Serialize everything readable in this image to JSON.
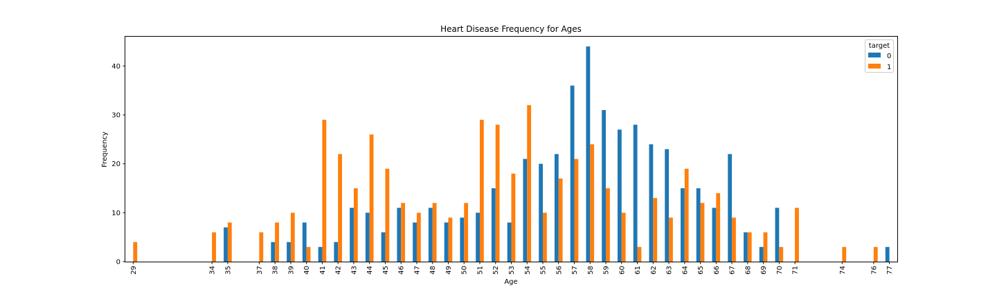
{
  "chart_data": {
    "type": "bar",
    "title": "Heart Disease Frequency for Ages",
    "xlabel": "Age",
    "ylabel": "Frequency",
    "ylim": [
      0,
      46
    ],
    "yticks": [
      0,
      10,
      20,
      30,
      40
    ],
    "categories": [
      "29",
      "34",
      "35",
      "37",
      "38",
      "39",
      "40",
      "41",
      "42",
      "43",
      "44",
      "45",
      "46",
      "47",
      "48",
      "49",
      "50",
      "51",
      "52",
      "53",
      "54",
      "55",
      "56",
      "57",
      "58",
      "59",
      "60",
      "61",
      "62",
      "63",
      "64",
      "65",
      "66",
      "67",
      "68",
      "69",
      "70",
      "71",
      "74",
      "76",
      "77"
    ],
    "category_positions": [
      29,
      34,
      35,
      37,
      38,
      39,
      40,
      41,
      42,
      43,
      44,
      45,
      46,
      47,
      48,
      49,
      50,
      51,
      52,
      53,
      54,
      55,
      56,
      57,
      58,
      59,
      60,
      61,
      62,
      63,
      64,
      65,
      66,
      67,
      68,
      69,
      70,
      71,
      74,
      76,
      77
    ],
    "series": [
      {
        "name": "0",
        "color": "#1f77b4",
        "values": [
          0,
          0,
          7,
          0,
          4,
          4,
          8,
          3,
          4,
          11,
          10,
          6,
          11,
          8,
          11,
          8,
          9,
          10,
          15,
          8,
          21,
          20,
          22,
          36,
          44,
          31,
          27,
          28,
          24,
          23,
          15,
          15,
          11,
          22,
          6,
          3,
          11,
          0,
          0,
          0,
          3
        ]
      },
      {
        "name": "1",
        "color": "#ff7f0e",
        "values": [
          4,
          6,
          8,
          6,
          8,
          10,
          3,
          29,
          22,
          15,
          26,
          19,
          12,
          10,
          12,
          9,
          12,
          29,
          28,
          18,
          32,
          10,
          17,
          21,
          24,
          15,
          10,
          3,
          13,
          9,
          19,
          12,
          14,
          9,
          6,
          6,
          3,
          11,
          3,
          3,
          0
        ]
      }
    ],
    "legend": {
      "title": "target",
      "position": "top-right"
    },
    "grid": false
  }
}
